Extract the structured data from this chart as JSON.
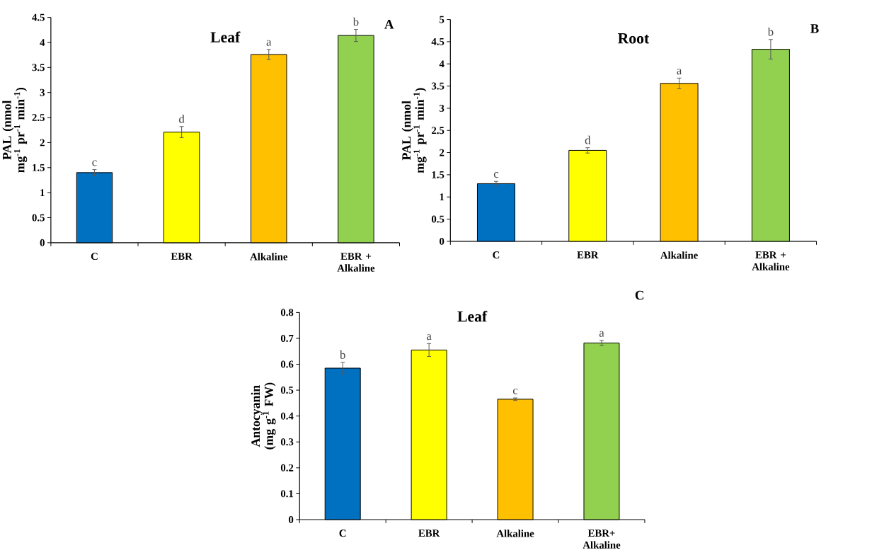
{
  "chart_data": [
    {
      "type": "bar",
      "title": "Leaf",
      "ylabel": "PAL (nmol mg$^{-1}$ pr$^{-1}$ min$^{-1}$)",
      "categories": [
        "C",
        "EBR",
        "Alkaline",
        "EBR + Alkaline"
      ],
      "values": [
        1.4,
        2.21,
        3.76,
        4.14
      ],
      "errors": [
        0.06,
        0.11,
        0.1,
        0.12
      ],
      "colors": [
        "#0070c0",
        "#ffff00",
        "#ffc000",
        "#92d050"
      ],
      "ylim": [
        0,
        4.5
      ],
      "yticks": [
        0,
        0.5,
        1,
        1.5,
        2,
        2.5,
        3,
        3.5,
        4,
        4.5
      ],
      "grid": false,
      "annotations": [
        "A",
        "c",
        "d",
        "a",
        "b"
      ]
    },
    {
      "type": "bar",
      "title": "Root",
      "ylabel": "PAL (nmol mg$^{-1}$ pr$^{-1}$ min$^{-1}$)",
      "categories": [
        "C",
        "EBR",
        "Alkaline",
        "EBR + Alkaline"
      ],
      "values": [
        1.3,
        2.05,
        3.56,
        4.33
      ],
      "errors": [
        0.05,
        0.06,
        0.12,
        0.22
      ],
      "colors": [
        "#0070c0",
        "#ffff00",
        "#ffc000",
        "#92d050"
      ],
      "ylim": [
        0,
        5
      ],
      "yticks": [
        0,
        0.5,
        1,
        1.5,
        2,
        2.5,
        3,
        3.5,
        4,
        4.5,
        5
      ],
      "grid": false,
      "annotations": [
        "B",
        "c",
        "d",
        "a",
        "b"
      ]
    },
    {
      "type": "bar",
      "title": "Leaf",
      "ylabel": "Antocyanin (mg g$^{-1}$ FW)",
      "categories": [
        "C",
        "EBR",
        "Alkaline",
        "EBR+ Alkaline"
      ],
      "values": [
        0.585,
        0.655,
        0.465,
        0.682
      ],
      "errors": [
        0.022,
        0.025,
        0.005,
        0.01
      ],
      "colors": [
        "#0070c0",
        "#ffff00",
        "#ffc000",
        "#92d050"
      ],
      "ylim": [
        0,
        0.8
      ],
      "yticks": [
        0,
        0.1,
        0.2,
        0.3,
        0.4,
        0.5,
        0.6,
        0.7,
        0.8
      ],
      "grid": false,
      "annotations": [
        "C",
        "b",
        "a",
        "c",
        "a"
      ]
    }
  ]
}
